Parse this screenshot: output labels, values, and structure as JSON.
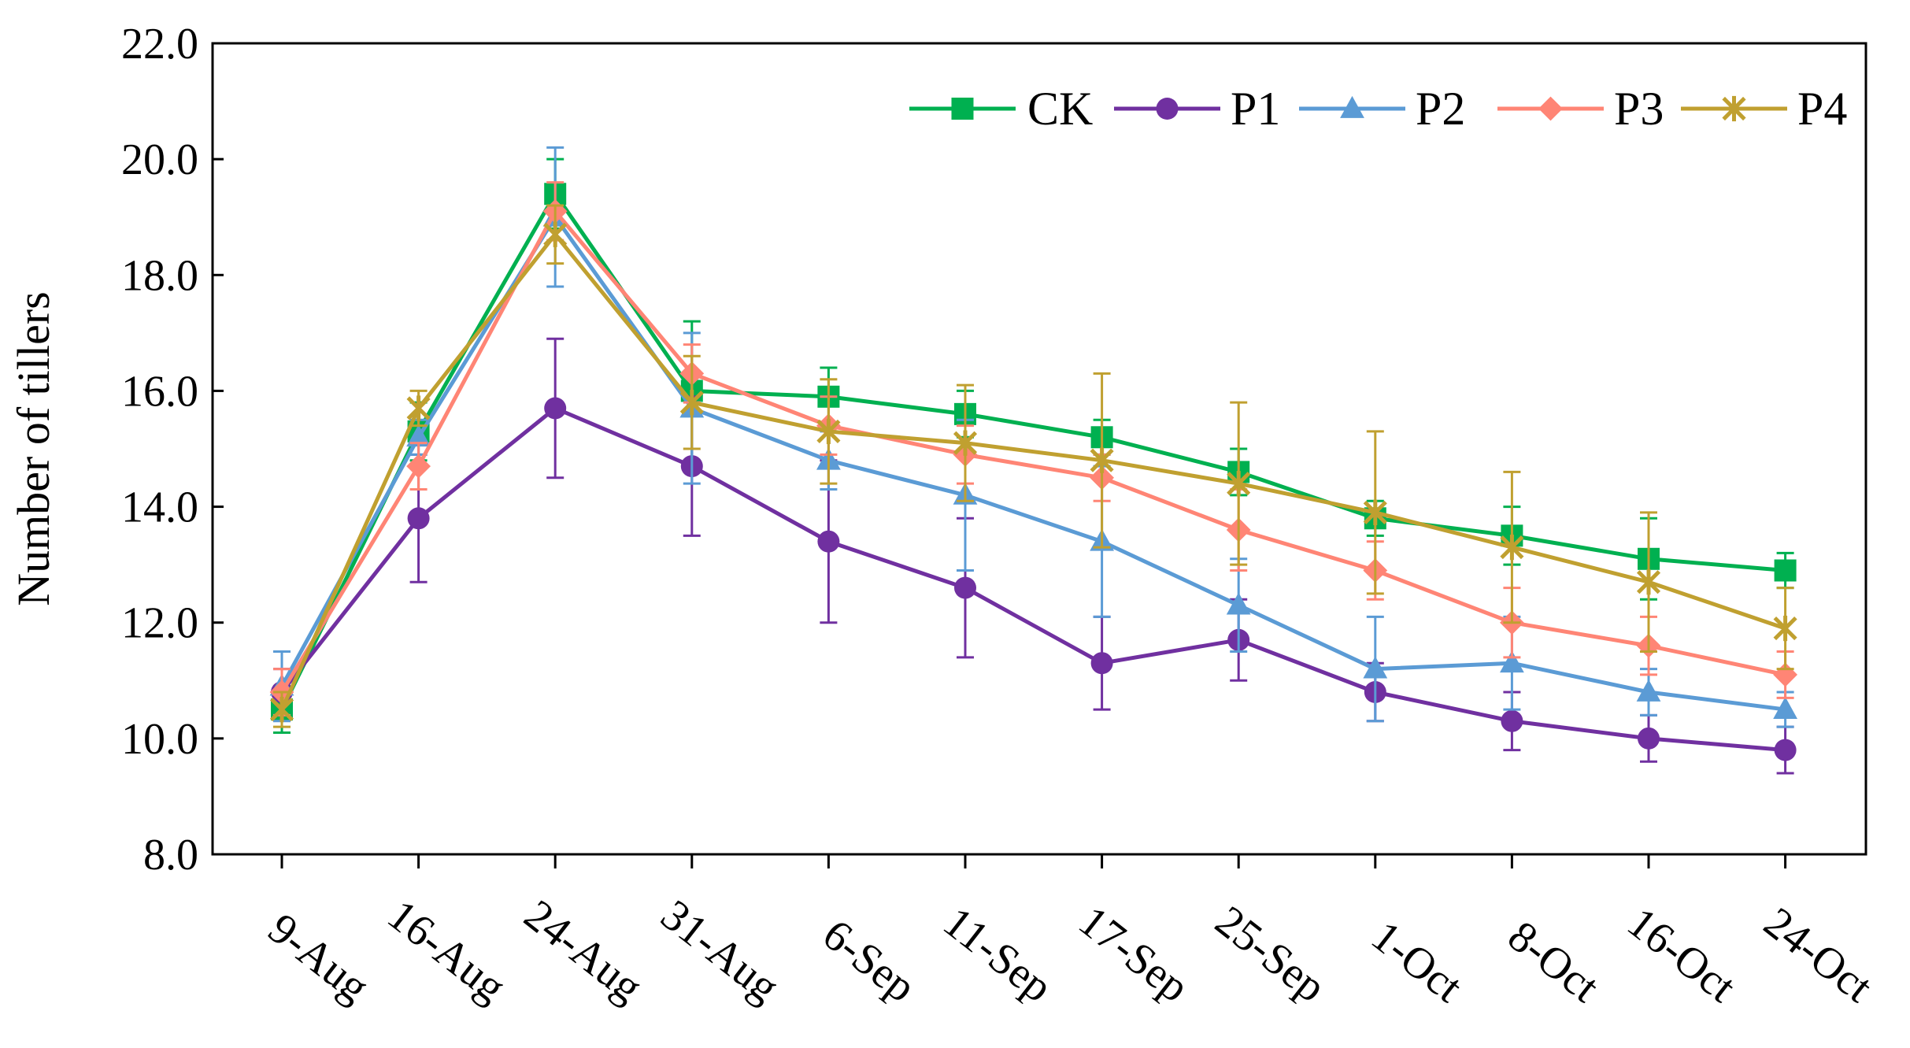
{
  "chart_data": {
    "type": "line",
    "title": "",
    "xlabel": "",
    "ylabel": "Number of tillers",
    "ylim": [
      8.0,
      22.0
    ],
    "yticks": [
      "8.0",
      "10.0",
      "12.0",
      "14.0",
      "16.0",
      "18.0",
      "20.0",
      "22.0"
    ],
    "grid": false,
    "legend_position": "top-right",
    "categories": [
      "9-Aug",
      "16-Aug",
      "24-Aug",
      "31-Aug",
      "6-Sep",
      "11-Sep",
      "17-Sep",
      "25-Sep",
      "1-Oct",
      "8-Oct",
      "16-Oct",
      "24-Oct"
    ],
    "series": [
      {
        "name": "CK",
        "color": "#00b050",
        "marker": "square",
        "values": [
          10.5,
          15.3,
          19.4,
          16.0,
          15.9,
          15.6,
          15.2,
          14.6,
          13.8,
          13.5,
          13.1,
          12.9
        ],
        "errors": [
          0.4,
          0.5,
          0.6,
          1.2,
          0.5,
          0.4,
          0.3,
          0.4,
          0.3,
          0.5,
          0.7,
          0.3
        ]
      },
      {
        "name": "P1",
        "color": "#7030a0",
        "marker": "circle",
        "values": [
          10.8,
          13.8,
          15.7,
          14.7,
          13.4,
          12.6,
          11.3,
          11.7,
          10.8,
          10.3,
          10.0,
          9.8
        ],
        "errors": [
          0.4,
          1.1,
          1.2,
          1.2,
          1.4,
          1.2,
          0.8,
          0.7,
          0.5,
          0.5,
          0.4,
          0.4
        ]
      },
      {
        "name": "P2",
        "color": "#5b9bd5",
        "marker": "triangle",
        "values": [
          10.9,
          15.2,
          19.0,
          15.7,
          14.8,
          14.2,
          13.4,
          12.3,
          11.2,
          11.3,
          10.8,
          10.5
        ],
        "errors": [
          0.6,
          0.3,
          1.2,
          1.3,
          0.5,
          1.3,
          1.3,
          0.8,
          0.9,
          0.8,
          0.4,
          0.3
        ]
      },
      {
        "name": "P3",
        "color": "#ff8575",
        "marker": "diamond",
        "values": [
          10.8,
          14.7,
          19.1,
          16.3,
          15.4,
          14.9,
          14.5,
          13.6,
          12.9,
          12.0,
          11.6,
          11.1
        ],
        "errors": [
          0.4,
          0.4,
          0.5,
          0.5,
          0.5,
          0.5,
          0.4,
          0.7,
          0.5,
          0.6,
          0.5,
          0.4
        ]
      },
      {
        "name": "P4",
        "color": "#c0a030",
        "marker": "star",
        "values": [
          10.5,
          15.7,
          18.7,
          15.8,
          15.3,
          15.1,
          14.8,
          14.4,
          13.9,
          13.3,
          12.7,
          11.9
        ],
        "errors": [
          0.3,
          0.3,
          0.5,
          0.8,
          0.9,
          1.0,
          1.5,
          1.4,
          1.4,
          1.3,
          1.2,
          0.7
        ]
      }
    ]
  }
}
